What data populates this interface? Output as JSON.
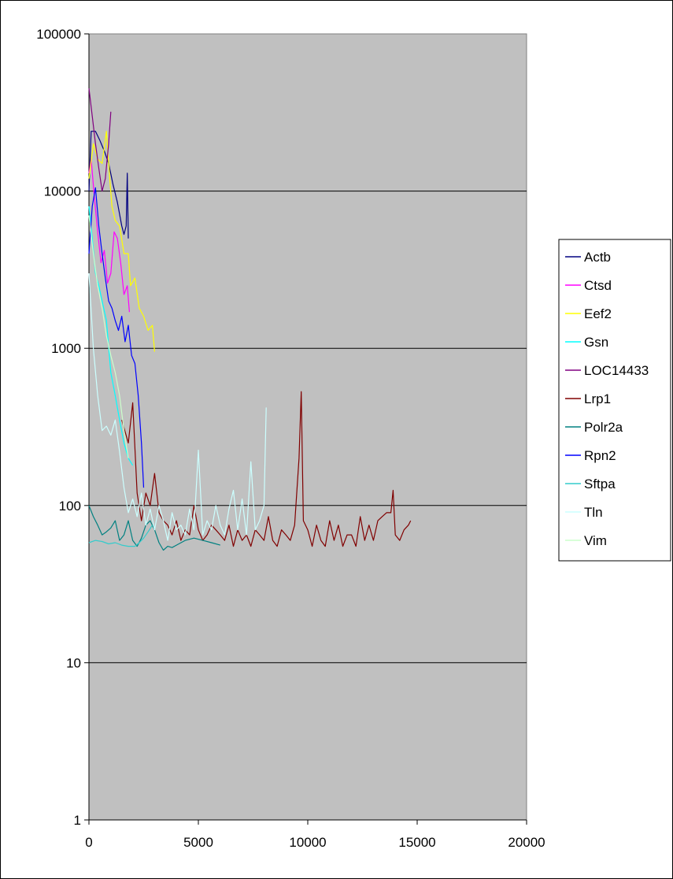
{
  "chart_data": {
    "type": "line",
    "title": "",
    "xlabel": "",
    "ylabel": "",
    "xlim": [
      0,
      20000
    ],
    "ylim": [
      1,
      100000
    ],
    "yscale": "log",
    "x_ticks": [
      "0",
      "5000",
      "10000",
      "15000",
      "20000"
    ],
    "y_ticks": [
      "1",
      "10",
      "100",
      "1000",
      "10000",
      "100000"
    ],
    "plot_background": "#C0C0C0",
    "grid": "horizontal",
    "legend_position": "right",
    "series": [
      {
        "name": "Actb",
        "color": "#000080",
        "x": [
          0,
          100,
          300,
          500,
          700,
          900,
          1100,
          1300,
          1500,
          1600,
          1700,
          1750,
          1800
        ],
        "y": [
          10000,
          24000,
          24000,
          21000,
          18000,
          15000,
          11000,
          8500,
          6000,
          5300,
          6000,
          13000,
          5000
        ]
      },
      {
        "name": "Ctsd",
        "color": "#FF00FF",
        "x": [
          0,
          100,
          250,
          400,
          550,
          700,
          850,
          1000,
          1150,
          1300,
          1450,
          1600,
          1750,
          1850
        ],
        "y": [
          13000,
          16000,
          9000,
          5500,
          3500,
          4200,
          2600,
          3000,
          5500,
          5000,
          3500,
          2200,
          2500,
          1700
        ]
      },
      {
        "name": "Eef2",
        "color": "#FFFF00",
        "x": [
          0,
          200,
          400,
          600,
          800,
          950,
          1050,
          1200,
          1400,
          1600,
          1800,
          1900,
          2100,
          2300,
          2500,
          2700,
          2900,
          3000
        ],
        "y": [
          12000,
          20000,
          16000,
          15000,
          24000,
          12000,
          8000,
          6500,
          6000,
          4000,
          4000,
          2500,
          2800,
          1800,
          1600,
          1300,
          1400,
          950
        ]
      },
      {
        "name": "Gsn",
        "color": "#00FFFF",
        "x": [
          0,
          150,
          300,
          450,
          600,
          800,
          1000,
          1200,
          1400,
          1600,
          1800,
          2000
        ],
        "y": [
          8000,
          5000,
          3000,
          2500,
          2000,
          1500,
          700,
          500,
          350,
          250,
          200,
          180
        ]
      },
      {
        "name": "LOC14433",
        "color": "#800080",
        "x": [
          0,
          150,
          300,
          450,
          600,
          750,
          900,
          1000
        ],
        "y": [
          45000,
          30000,
          20000,
          14000,
          10000,
          12000,
          20000,
          32000
        ]
      },
      {
        "name": "Lrp1",
        "color": "#800000",
        "x": [
          1500,
          1800,
          2000,
          2200,
          2400,
          2600,
          2800,
          3000,
          3200,
          3400,
          3600,
          3800,
          4000,
          4200,
          4400,
          4600,
          4800,
          5000,
          5200,
          5400,
          5600,
          5800,
          6000,
          6200,
          6400,
          6600,
          6800,
          7000,
          7200,
          7400,
          7600,
          7800,
          8000,
          8200,
          8400,
          8600,
          8800,
          9000,
          9200,
          9400,
          9600,
          9700,
          9800,
          10000,
          10200,
          10400,
          10600,
          10800,
          11000,
          11200,
          11400,
          11600,
          11800,
          12000,
          12200,
          12400,
          12600,
          12800,
          13000,
          13200,
          13400,
          13600,
          13800,
          13900,
          14000,
          14200,
          14400,
          14600,
          14700
        ],
        "y": [
          350,
          250,
          450,
          120,
          80,
          120,
          100,
          160,
          90,
          80,
          75,
          65,
          80,
          60,
          70,
          65,
          100,
          70,
          60,
          65,
          75,
          70,
          65,
          60,
          75,
          55,
          70,
          60,
          65,
          55,
          70,
          65,
          60,
          85,
          60,
          55,
          70,
          65,
          60,
          75,
          200,
          530,
          80,
          70,
          55,
          75,
          60,
          55,
          80,
          60,
          75,
          55,
          65,
          65,
          55,
          85,
          60,
          75,
          60,
          80,
          85,
          90,
          90,
          125,
          65,
          60,
          70,
          75,
          80
        ]
      },
      {
        "name": "Polr2a",
        "color": "#008080",
        "x": [
          0,
          200,
          400,
          600,
          800,
          1000,
          1200,
          1400,
          1600,
          1800,
          2000,
          2200,
          2400,
          2600,
          2800,
          3000,
          3200,
          3400,
          3600,
          3800,
          4000,
          4400,
          4800,
          5200,
          5600,
          6000
        ],
        "y": [
          100,
          85,
          75,
          65,
          68,
          72,
          80,
          60,
          65,
          80,
          60,
          55,
          62,
          75,
          80,
          70,
          58,
          52,
          55,
          54,
          56,
          60,
          62,
          60,
          58,
          56
        ]
      },
      {
        "name": "Rpn2",
        "color": "#0000FF",
        "x": [
          0,
          150,
          300,
          450,
          600,
          750,
          900,
          1050,
          1200,
          1350,
          1500,
          1650,
          1800,
          1950,
          2100,
          2250,
          2400,
          2500
        ],
        "y": [
          4000,
          8000,
          10500,
          6000,
          4000,
          2800,
          2000,
          1800,
          1500,
          1300,
          1600,
          1100,
          1400,
          900,
          800,
          500,
          250,
          130
        ]
      },
      {
        "name": "Sftpa",
        "color": "#33CCCC",
        "x": [
          0,
          300,
          600,
          900,
          1200,
          1500,
          1800,
          2100,
          2300,
          2500,
          2700,
          2900
        ],
        "y": [
          58,
          60,
          59,
          57,
          58,
          56,
          55,
          55,
          58,
          62,
          68,
          75
        ]
      },
      {
        "name": "Tln",
        "color": "#CCFFFF",
        "x": [
          0,
          200,
          400,
          600,
          800,
          1000,
          1200,
          1400,
          1600,
          1800,
          2000,
          2200,
          2400,
          2600,
          2800,
          3000,
          3200,
          3400,
          3600,
          3800,
          4000,
          4200,
          4400,
          4600,
          4800,
          5000,
          5200,
          5400,
          5600,
          5800,
          6000,
          6200,
          6400,
          6600,
          6800,
          7000,
          7200,
          7400,
          7600,
          7800,
          8000,
          8100
        ],
        "y": [
          3000,
          1000,
          500,
          300,
          320,
          280,
          350,
          220,
          130,
          90,
          110,
          85,
          120,
          75,
          95,
          70,
          100,
          80,
          60,
          90,
          70,
          75,
          65,
          95,
          70,
          225,
          65,
          80,
          70,
          100,
          75,
          65,
          95,
          125,
          70,
          110,
          65,
          190,
          70,
          80,
          100,
          420
        ]
      },
      {
        "name": "Vim",
        "color": "#CCFFCC",
        "x": [
          0,
          200,
          400,
          600,
          800,
          1000,
          1200,
          1400,
          1600,
          1800
        ],
        "y": [
          7000,
          4000,
          2500,
          1800,
          1200,
          900,
          700,
          500,
          300,
          200
        ]
      }
    ]
  }
}
